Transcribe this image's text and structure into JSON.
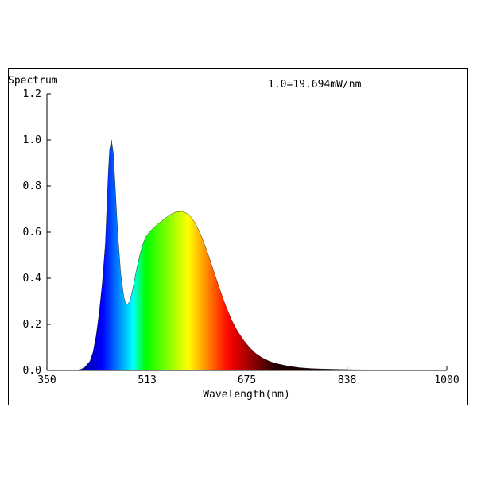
{
  "chart_data": {
    "type": "area",
    "title": "Spectrum",
    "annotation": "1.0=19.694mW/nm",
    "xlabel": "Wavelength(nm)",
    "ylabel": "",
    "xlim": [
      350,
      1000
    ],
    "ylim": [
      0,
      1.2
    ],
    "x_ticks": [
      350,
      513,
      675,
      838,
      1000
    ],
    "x_tick_labels": [
      "350",
      "513",
      "675",
      "838",
      "1000"
    ],
    "y_ticks": [
      0,
      0.2,
      0.4,
      0.6,
      0.8,
      1.0,
      1.2
    ],
    "y_tick_labels": [
      "0.0",
      "0.2",
      "0.4",
      "0.6",
      "0.8",
      "1.0",
      "1.2"
    ],
    "grid": false,
    "fill": "visible-spectrum-gradient",
    "series": [
      {
        "x": [
          350,
          400,
          410,
          420,
          425,
          430,
          435,
          440,
          445,
          447,
          450,
          452,
          455,
          458,
          460,
          465,
          470,
          475,
          478,
          480,
          485,
          490,
          495,
          500,
          505,
          510,
          515,
          520,
          530,
          540,
          550,
          560,
          570,
          580,
          590,
          600,
          610,
          620,
          630,
          640,
          650,
          660,
          670,
          680,
          690,
          700,
          710,
          720,
          740,
          760,
          780,
          800,
          850,
          900,
          1000
        ],
        "values": [
          0,
          0,
          0.01,
          0.04,
          0.08,
          0.15,
          0.25,
          0.38,
          0.55,
          0.68,
          0.87,
          0.96,
          1.0,
          0.94,
          0.85,
          0.6,
          0.42,
          0.32,
          0.29,
          0.285,
          0.3,
          0.36,
          0.43,
          0.49,
          0.54,
          0.575,
          0.595,
          0.61,
          0.635,
          0.655,
          0.675,
          0.688,
          0.69,
          0.678,
          0.645,
          0.59,
          0.52,
          0.44,
          0.36,
          0.285,
          0.22,
          0.17,
          0.13,
          0.098,
          0.073,
          0.055,
          0.042,
          0.032,
          0.02,
          0.012,
          0.008,
          0.006,
          0.003,
          0.002,
          0
        ]
      }
    ]
  }
}
